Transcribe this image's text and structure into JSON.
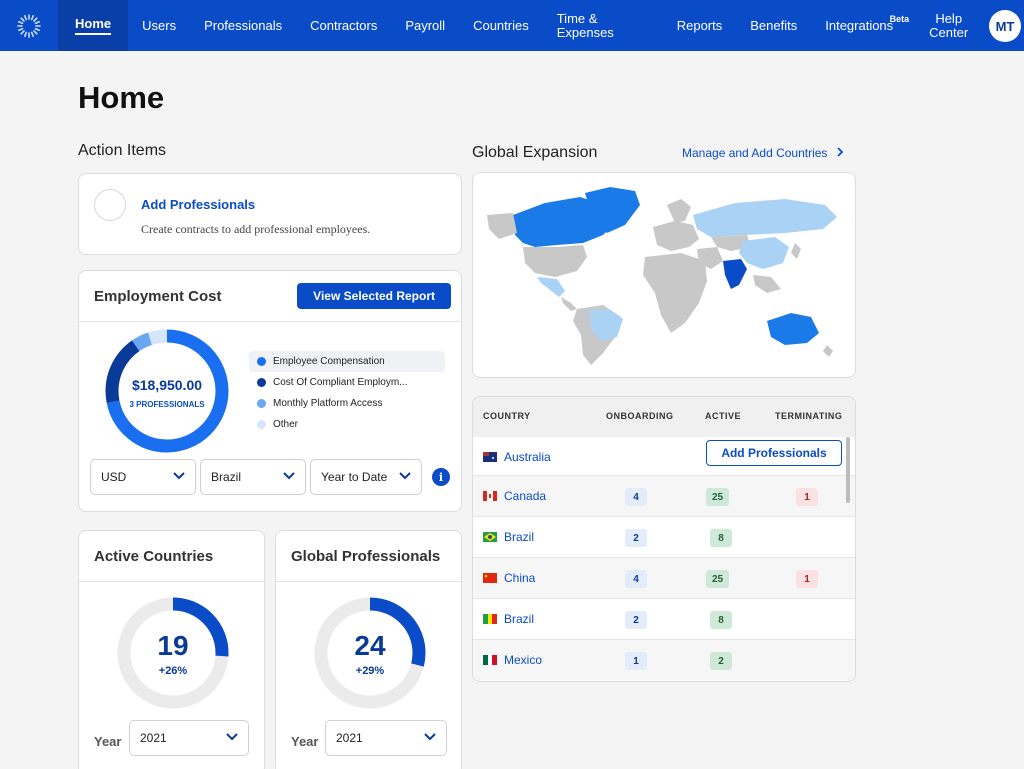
{
  "nav": {
    "items": [
      {
        "label": "Home"
      },
      {
        "label": "Users"
      },
      {
        "label": "Professionals"
      },
      {
        "label": "Contractors"
      },
      {
        "label": "Payroll"
      },
      {
        "label": "Countries"
      },
      {
        "label": "Time &\nExpenses"
      },
      {
        "label": "Reports"
      },
      {
        "label": "Benefits"
      },
      {
        "label": "Integrations",
        "badge": "Beta"
      },
      {
        "label": "Help\nCenter"
      }
    ],
    "avatar": "MT"
  },
  "page_title": "Home",
  "action_items": {
    "title": "Action Items",
    "item_title": "Add Professionals",
    "item_desc": "Create contracts to add professional employees."
  },
  "employment_cost": {
    "title": "Employment Cost",
    "button": "View Selected Report",
    "total": "$18,950.00",
    "sub": "3 PROFESSIONALS",
    "legend": [
      {
        "label": "Employee Compensation",
        "color": "#1a6ff0"
      },
      {
        "label": "Cost Of Compliant Employm...",
        "color": "#0a3a97"
      },
      {
        "label": "Monthly Platform Access",
        "color": "#6aa6f3"
      },
      {
        "label": "Other",
        "color": "#d5e6fb"
      }
    ],
    "selects": {
      "currency": "USD",
      "country": "Brazil",
      "period": "Year to Date"
    }
  },
  "active_countries": {
    "title": "Active Countries",
    "value": "19",
    "change": "+26%",
    "year_label": "Year",
    "year": "2021"
  },
  "global_professionals": {
    "title": "Global Professionals",
    "value": "24",
    "change": "+29%",
    "year_label": "Year",
    "year": "2021"
  },
  "global_expansion": {
    "title": "Global Expansion",
    "link": "Manage and Add Countries"
  },
  "table": {
    "headers": {
      "country": "COUNTRY",
      "onboarding": "ONBOARDING",
      "active": "ACTIVE",
      "terminating": "TERMINATING"
    },
    "add_button": "Add Professionals",
    "rows": [
      {
        "country": "Australia"
      },
      {
        "country": "Canada",
        "onboarding": "4",
        "active": "25",
        "terminating": "1"
      },
      {
        "country": "Brazil",
        "onboarding": "2",
        "active": "8"
      },
      {
        "country": "China",
        "onboarding": "4",
        "active": "25",
        "terminating": "1"
      },
      {
        "country": "Brazil",
        "onboarding": "2",
        "active": "8"
      },
      {
        "country": "Mexico",
        "onboarding": "1",
        "active": "2"
      }
    ]
  }
}
